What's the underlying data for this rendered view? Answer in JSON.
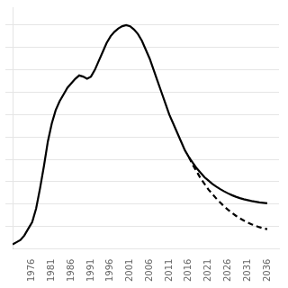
{
  "chart_data": {
    "type": "line",
    "x": [
      1971,
      1972,
      1973,
      1974,
      1975,
      1976,
      1977,
      1978,
      1979,
      1980,
      1981,
      1982,
      1983,
      1984,
      1985,
      1986,
      1987,
      1988,
      1989,
      1990,
      1991,
      1992,
      1993,
      1994,
      1995,
      1996,
      1997,
      1998,
      1999,
      2000,
      2001,
      2002,
      2003,
      2004,
      2005,
      2006,
      2007,
      2008,
      2009,
      2010,
      2011,
      2012,
      2013,
      2014,
      2015,
      2016,
      2017,
      2018,
      2019,
      2020,
      2021,
      2022,
      2023,
      2024,
      2025,
      2026,
      2027,
      2028,
      2029,
      2030,
      2031,
      2032,
      2033,
      2034,
      2035,
      2036
    ],
    "series": [
      {
        "color": "#000000",
        "line_style": "solid",
        "values": [
          0.02,
          0.03,
          0.04,
          0.06,
          0.09,
          0.12,
          0.18,
          0.27,
          0.37,
          0.48,
          0.56,
          0.62,
          0.66,
          0.69,
          0.72,
          0.74,
          0.76,
          0.775,
          0.77,
          0.76,
          0.77,
          0.8,
          0.84,
          0.88,
          0.92,
          0.95,
          0.97,
          0.985,
          0.995,
          1.0,
          0.995,
          0.98,
          0.96,
          0.93,
          0.89,
          0.85,
          0.8,
          0.75,
          0.7,
          0.65,
          0.6,
          0.56,
          0.52,
          0.48,
          0.44,
          0.41,
          0.385,
          0.36,
          0.34,
          0.32,
          0.305,
          0.29,
          0.278,
          0.267,
          0.257,
          0.248,
          0.24,
          0.233,
          0.227,
          0.222,
          0.218,
          0.214,
          0.211,
          0.208,
          0.206,
          0.204
        ]
      },
      {
        "color": "#000000",
        "line_style": "dashed",
        "values": [
          null,
          null,
          null,
          null,
          null,
          null,
          null,
          null,
          null,
          null,
          null,
          null,
          null,
          null,
          null,
          null,
          null,
          null,
          null,
          null,
          null,
          null,
          null,
          null,
          null,
          null,
          null,
          null,
          null,
          null,
          null,
          null,
          null,
          null,
          null,
          null,
          null,
          null,
          null,
          null,
          null,
          null,
          null,
          null,
          null,
          0.41,
          0.375,
          0.345,
          0.315,
          0.29,
          0.265,
          0.245,
          0.225,
          0.207,
          0.19,
          0.175,
          0.161,
          0.148,
          0.137,
          0.127,
          0.118,
          0.11,
          0.103,
          0.097,
          0.092,
          0.088
        ]
      }
    ],
    "xlim": [
      1971,
      2039
    ],
    "xticks": [
      1976,
      1981,
      1986,
      1991,
      1996,
      2001,
      2006,
      2011,
      2016,
      2021,
      2026,
      2031,
      2036
    ],
    "ylim": [
      0.0,
      1.08
    ],
    "yticks": [
      0.1,
      0.2,
      0.3,
      0.4,
      0.5,
      0.6,
      0.7,
      0.8,
      0.9,
      1.0
    ],
    "grid": "y",
    "tick_labels": "x"
  }
}
